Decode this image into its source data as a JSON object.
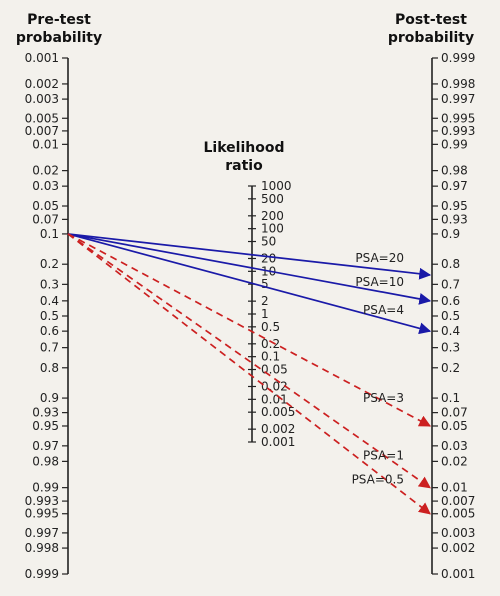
{
  "pre_axis": {
    "title_line1": "Pre-test",
    "title_line2": "probability",
    "ticks": [
      "0.001",
      "0.002",
      "0.003",
      "0.005",
      "0.007",
      "0.01",
      "0.02",
      "0.03",
      "0.05",
      "0.07",
      "0.1",
      "0.2",
      "0.3",
      "0.4",
      "0.5",
      "0.6",
      "0.7",
      "0.8",
      "0.9",
      "0.93",
      "0.95",
      "0.97",
      "0.98",
      "0.99",
      "0.993",
      "0.995",
      "0.997",
      "0.998",
      "0.999"
    ]
  },
  "lr_axis": {
    "title_line1": "Likelihood",
    "title_line2": "ratio",
    "ticks": [
      "1000",
      "500",
      "200",
      "100",
      "50",
      "20",
      "10",
      "5",
      "2",
      "1",
      "0.5",
      "0.2",
      "0.1",
      "0.05",
      "0.02",
      "0.01",
      "0.005",
      "0.002",
      "0.001"
    ]
  },
  "post_axis": {
    "title_line1": "Post-test",
    "title_line2": "probability",
    "ticks": [
      "0.999",
      "0.998",
      "0.997",
      "0.995",
      "0.993",
      "0.99",
      "0.98",
      "0.97",
      "0.95",
      "0.93",
      "0.9",
      "0.8",
      "0.7",
      "0.6",
      "0.5",
      "0.4",
      "0.3",
      "0.2",
      "0.1",
      "0.07",
      "0.05",
      "0.03",
      "0.02",
      "0.01",
      "0.007",
      "0.005",
      "0.003",
      "0.002",
      "0.001"
    ]
  },
  "chart_data": {
    "type": "nomogram",
    "pretest_probability": 0.1,
    "colors": {
      "positive": "#1a1aa8",
      "negative": "#cc2020"
    },
    "lines": [
      {
        "label": "PSA=20",
        "posttest_probability": 0.75,
        "style": "solid",
        "color": "#1a1aa8"
      },
      {
        "label": "PSA=10",
        "posttest_probability": 0.6,
        "style": "solid",
        "color": "#1a1aa8"
      },
      {
        "label": "PSA=4",
        "posttest_probability": 0.4,
        "style": "solid",
        "color": "#1a1aa8"
      },
      {
        "label": "PSA=3",
        "posttest_probability": 0.05,
        "style": "dashed",
        "color": "#cc2020"
      },
      {
        "label": "PSA=1",
        "posttest_probability": 0.01,
        "style": "dashed",
        "color": "#cc2020"
      },
      {
        "label": "PSA=0.5",
        "posttest_probability": 0.005,
        "style": "dashed",
        "color": "#cc2020"
      }
    ]
  }
}
